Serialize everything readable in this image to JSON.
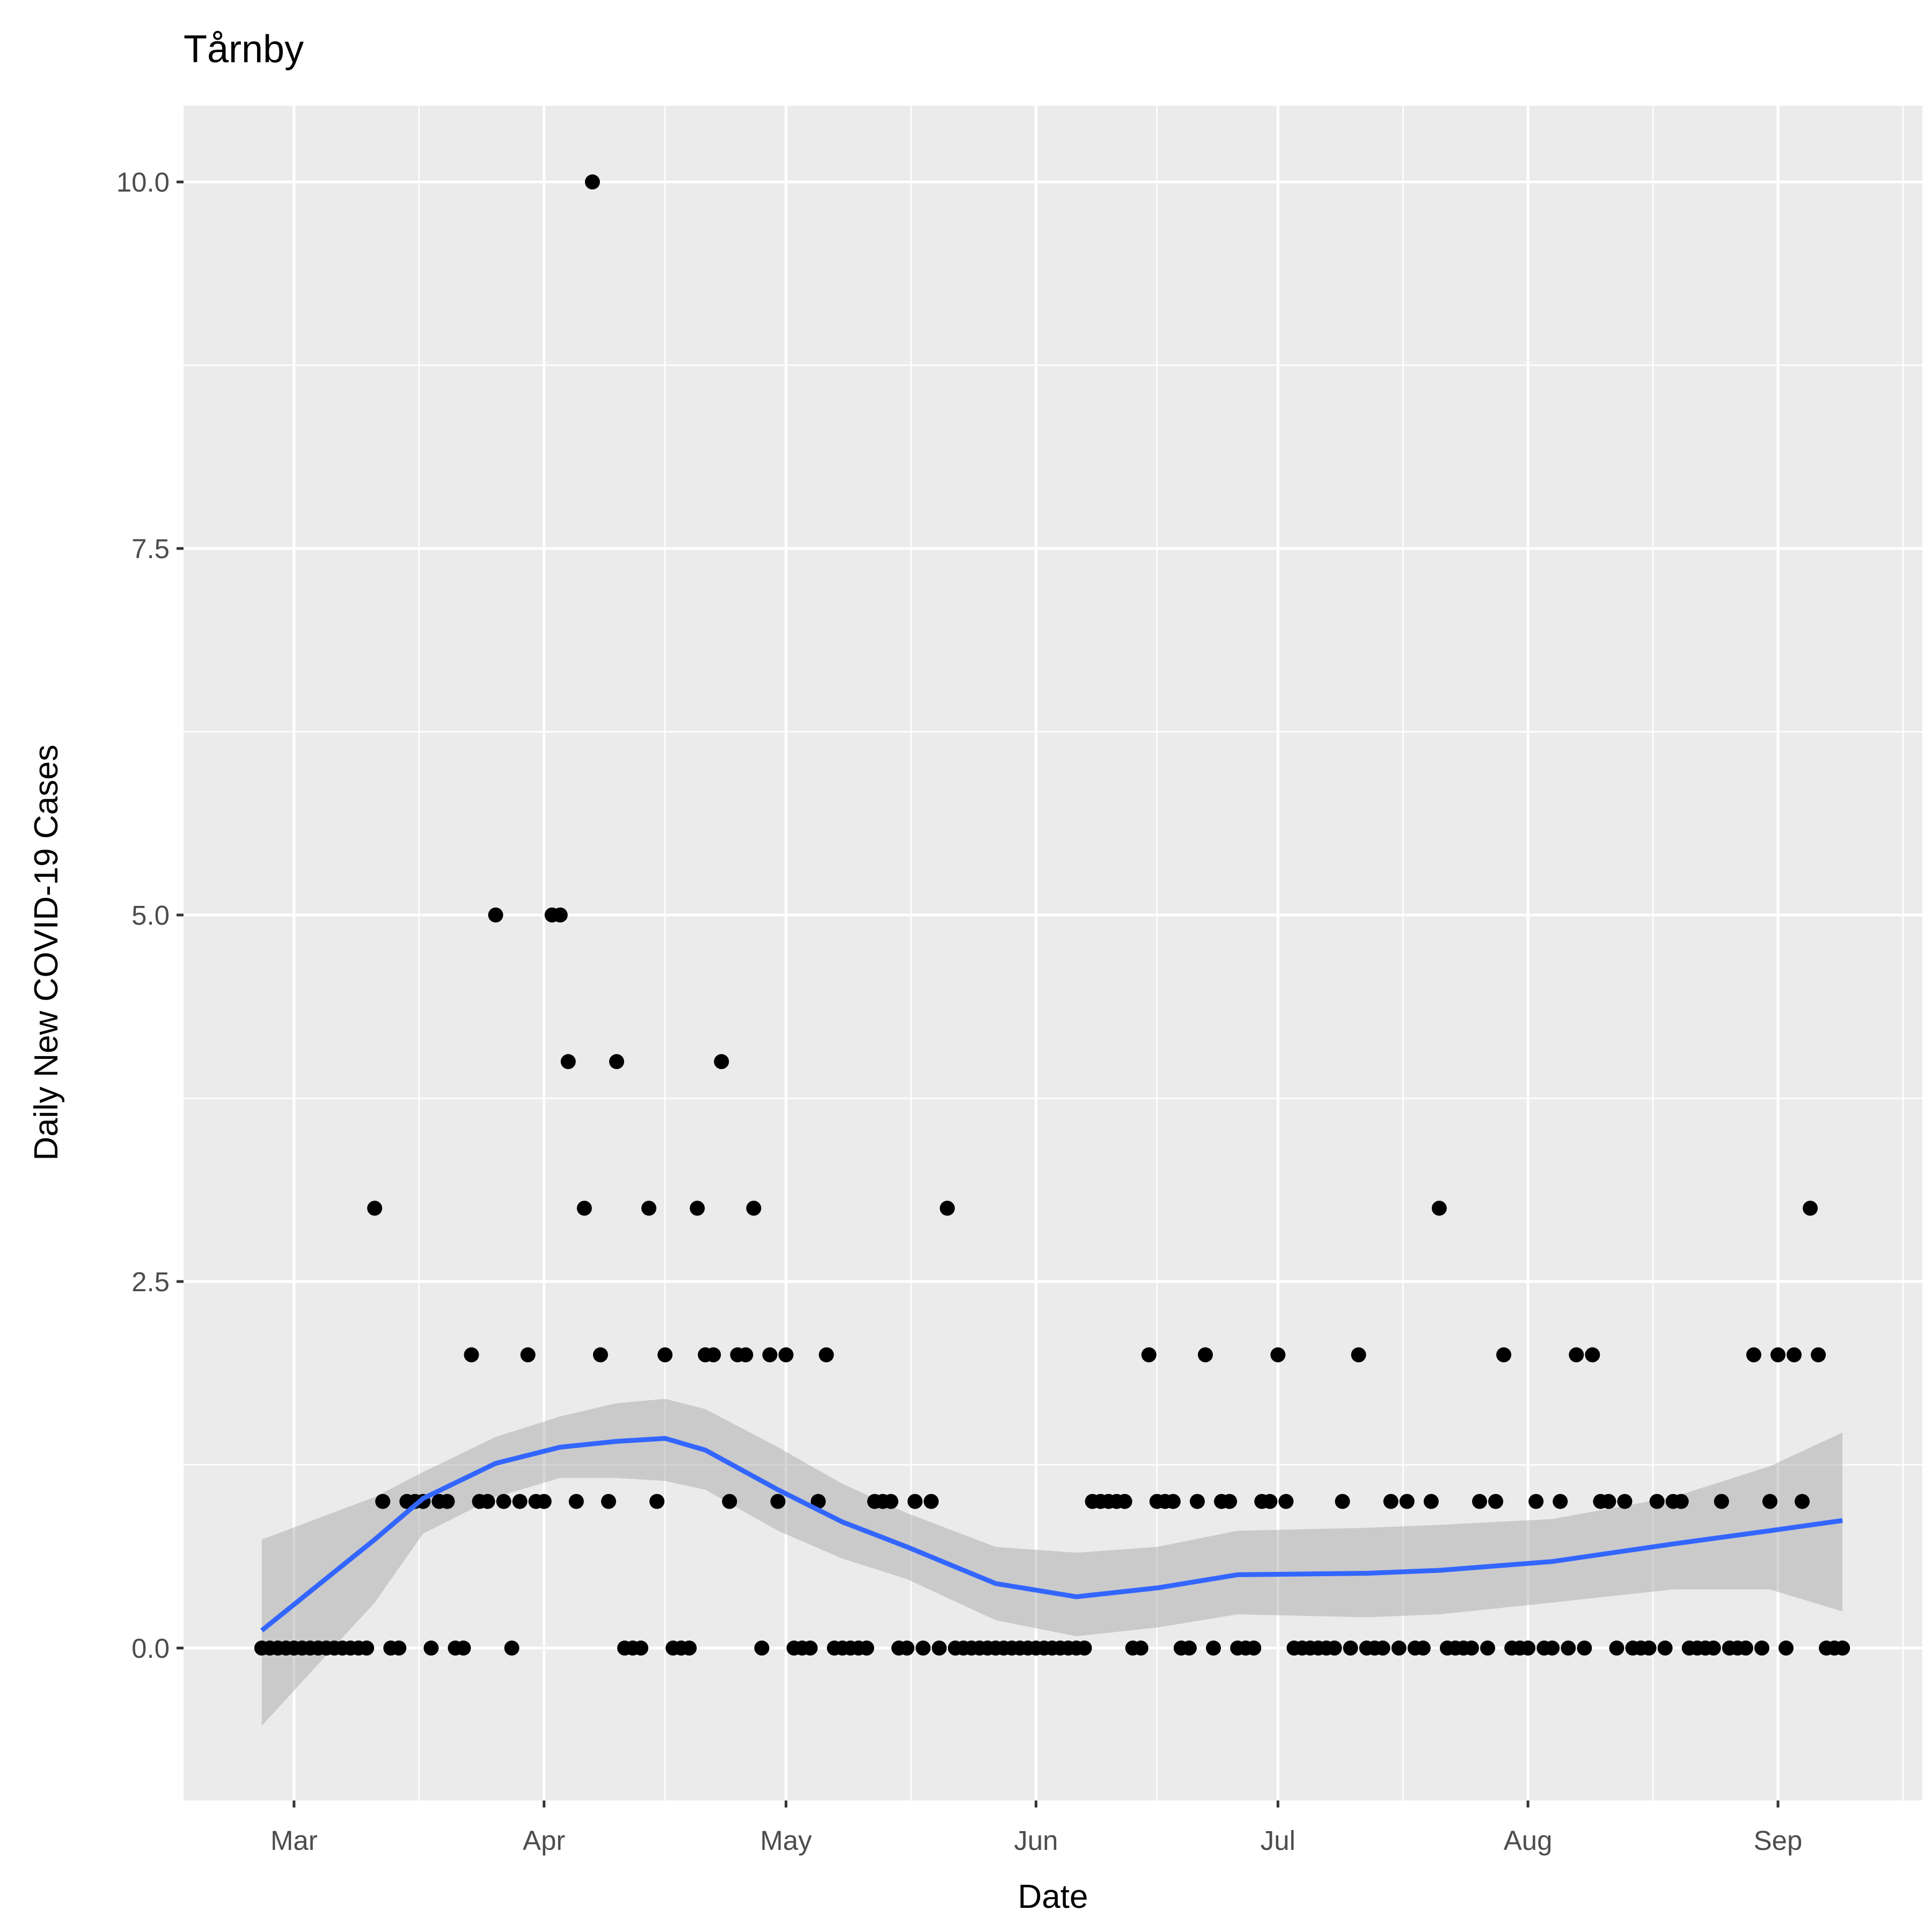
{
  "chart_data": {
    "type": "scatter",
    "title": "Tårnby",
    "x_label": "Date",
    "y_label": "Daily New COVID-19 Cases",
    "xlim": [
      47.3,
      262.9
    ],
    "ylim": [
      -1.04,
      10.52
    ],
    "xticks": [
      {
        "value": 61,
        "label": "Mar"
      },
      {
        "value": 92,
        "label": "Apr"
      },
      {
        "value": 122,
        "label": "May"
      },
      {
        "value": 153,
        "label": "Jun"
      },
      {
        "value": 183,
        "label": "Jul"
      },
      {
        "value": 214,
        "label": "Aug"
      },
      {
        "value": 245,
        "label": "Sep"
      }
    ],
    "yticks": [
      {
        "value": 0,
        "label": "0.0"
      },
      2.5,
      {
        "value": 5,
        "label": "5.0"
      },
      7.5,
      {
        "value": 10,
        "label": "10.0"
      }
    ],
    "grid": true,
    "background": "#ebebeb",
    "points": {
      "color": "#000000",
      "x": [
        57,
        58,
        59,
        60,
        61,
        62,
        63,
        64,
        65,
        66,
        67,
        68,
        69,
        70,
        71,
        72,
        73,
        74,
        75,
        76,
        77,
        78,
        79,
        80,
        81,
        82,
        83,
        84,
        85,
        86,
        87,
        88,
        89,
        90,
        91,
        92,
        93,
        94,
        95,
        96,
        97,
        98,
        99,
        100,
        101,
        102,
        103,
        104,
        105,
        106,
        107,
        108,
        109,
        110,
        111,
        112,
        113,
        114,
        115,
        116,
        117,
        118,
        119,
        120,
        121,
        122,
        123,
        124,
        125,
        126,
        127,
        128,
        129,
        130,
        131,
        132,
        133,
        134,
        135,
        136,
        137,
        138,
        139,
        140,
        141,
        142,
        143,
        144,
        145,
        146,
        147,
        148,
        149,
        150,
        151,
        152,
        153,
        154,
        155,
        156,
        157,
        158,
        159,
        160,
        161,
        162,
        163,
        164,
        165,
        166,
        167,
        168,
        169,
        170,
        171,
        172,
        173,
        174,
        175,
        176,
        177,
        178,
        179,
        180,
        181,
        182,
        183,
        184,
        185,
        186,
        187,
        188,
        189,
        190,
        191,
        192,
        193,
        194,
        195,
        196,
        197,
        198,
        199,
        200,
        201,
        202,
        203,
        204,
        205,
        206,
        207,
        208,
        209,
        210,
        211,
        212,
        213,
        214,
        215,
        216,
        217,
        218,
        219,
        220,
        221,
        222,
        223,
        224,
        225,
        226,
        227,
        228,
        229,
        230,
        231,
        232,
        233,
        234,
        235,
        236,
        237,
        238,
        239,
        240,
        241,
        242,
        243,
        244,
        245,
        246,
        247,
        248,
        249,
        250,
        251,
        252,
        253
      ],
      "values": [
        0,
        0,
        0,
        0,
        0,
        0,
        0,
        0,
        0,
        0,
        0,
        0,
        0,
        0,
        3,
        1,
        0,
        0,
        1,
        1,
        1,
        0,
        1,
        1,
        0,
        0,
        2,
        1,
        1,
        5,
        1,
        0,
        1,
        2,
        1,
        1,
        5,
        5,
        4,
        1,
        3,
        10,
        2,
        1,
        4,
        0,
        0,
        0,
        3,
        1,
        2,
        0,
        0,
        0,
        3,
        2,
        2,
        4,
        1,
        2,
        2,
        3,
        0,
        2,
        1,
        2,
        0,
        0,
        0,
        1,
        2,
        0,
        0,
        0,
        0,
        0,
        1,
        1,
        1,
        0,
        0,
        1,
        0,
        1,
        0,
        3,
        0,
        0,
        0,
        0,
        0,
        0,
        0,
        0,
        0,
        0,
        0,
        0,
        0,
        0,
        0,
        0,
        0,
        1,
        1,
        1,
        1,
        1,
        0,
        0,
        2,
        1,
        1,
        1,
        0,
        0,
        1,
        2,
        0,
        1,
        1,
        0,
        0,
        0,
        1,
        1,
        2,
        1,
        0,
        0,
        0,
        0,
        0,
        0,
        1,
        0,
        2,
        0,
        0,
        0,
        1,
        0,
        1,
        0,
        0,
        1,
        3,
        0,
        0,
        0,
        0,
        1,
        0,
        1,
        2,
        0,
        0,
        0,
        1,
        0,
        0,
        1,
        0,
        2,
        0,
        2,
        1,
        1,
        0,
        1,
        0,
        0,
        0,
        1,
        0,
        1,
        1,
        0,
        0,
        0,
        0,
        1,
        0,
        0,
        0,
        2,
        0,
        1,
        2,
        0,
        2,
        1,
        3,
        2,
        0,
        0,
        0
      ]
    },
    "smooth": {
      "color": "#3366ff",
      "band_color": "#999999",
      "x": [
        57,
        71,
        77,
        86,
        94,
        101,
        107,
        112,
        121,
        129,
        137,
        148,
        158,
        168,
        178,
        194,
        203,
        217,
        232,
        244,
        253
      ],
      "values": [
        0.12,
        0.74,
        1.02,
        1.26,
        1.37,
        1.41,
        1.43,
        1.35,
        1.08,
        0.86,
        0.69,
        0.44,
        0.35,
        0.41,
        0.5,
        0.51,
        0.53,
        0.59,
        0.71,
        0.8,
        0.87
      ],
      "lower": [
        -0.53,
        0.31,
        0.78,
        1.03,
        1.16,
        1.16,
        1.14,
        1.08,
        0.8,
        0.61,
        0.47,
        0.19,
        0.08,
        0.14,
        0.23,
        0.21,
        0.23,
        0.31,
        0.4,
        0.4,
        0.25
      ],
      "upper": [
        0.74,
        1.03,
        1.2,
        1.44,
        1.58,
        1.67,
        1.7,
        1.63,
        1.37,
        1.12,
        0.92,
        0.69,
        0.65,
        0.69,
        0.8,
        0.82,
        0.84,
        0.88,
        1.03,
        1.24,
        1.47
      ]
    }
  }
}
